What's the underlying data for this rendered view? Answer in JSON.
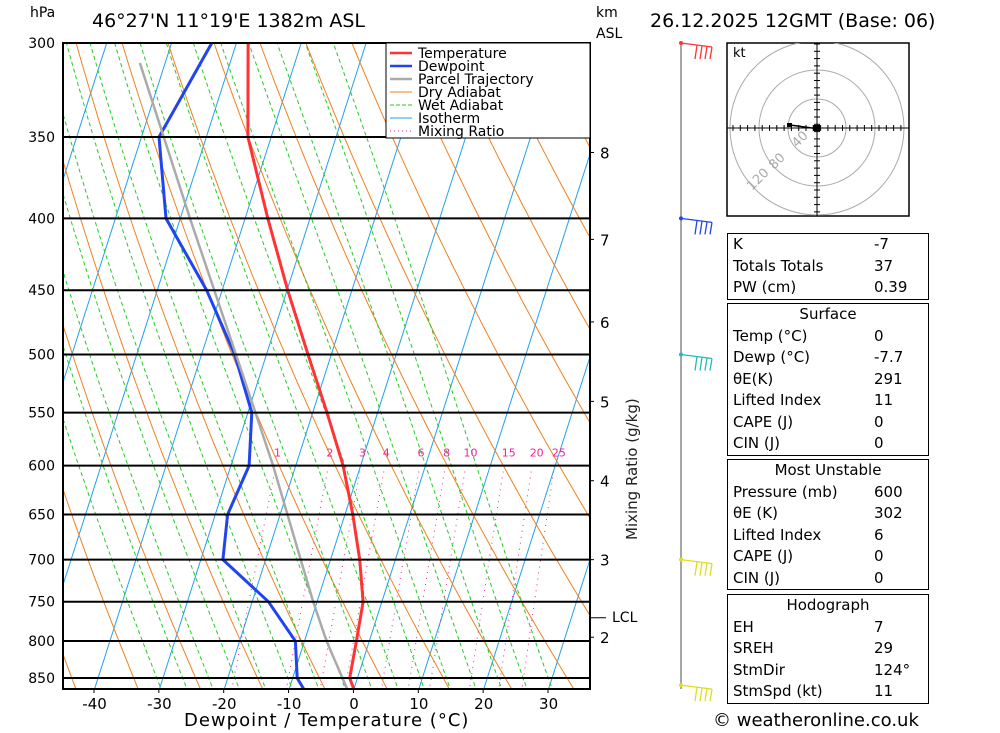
{
  "header": {
    "hpa": "hPa",
    "title": "46°27'N 11°19'E 1382m ASL",
    "km": "km",
    "asl": "ASL",
    "date": "26.12.2025 12GMT (Base: 06)"
  },
  "footer": "© weatheronline.co.uk",
  "hodograph": {
    "unit": "kt",
    "rings": [
      "40",
      "80",
      "120"
    ]
  },
  "indices": [
    {
      "label": "K",
      "value": "-7"
    },
    {
      "label": "Totals Totals",
      "value": "37"
    },
    {
      "label": "PW (cm)",
      "value": "0.39"
    }
  ],
  "surface": {
    "title": "Surface",
    "rows": [
      {
        "label": "Temp (°C)",
        "value": "0"
      },
      {
        "label": "Dewp (°C)",
        "value": "-7.7"
      },
      {
        "label": "θE(K)",
        "value": "291"
      },
      {
        "label": "Lifted Index",
        "value": "11"
      },
      {
        "label": "CAPE (J)",
        "value": "0"
      },
      {
        "label": "CIN (J)",
        "value": "0"
      }
    ]
  },
  "most_unstable": {
    "title": "Most Unstable",
    "rows": [
      {
        "label": "Pressure (mb)",
        "value": "600"
      },
      {
        "label": "θE (K)",
        "value": "302"
      },
      {
        "label": "Lifted Index",
        "value": "6"
      },
      {
        "label": "CAPE (J)",
        "value": "0"
      },
      {
        "label": "CIN (J)",
        "value": "0"
      }
    ]
  },
  "hodo_table": {
    "title": "Hodograph",
    "rows": [
      {
        "label": "EH",
        "value": "7"
      },
      {
        "label": "SREH",
        "value": "29"
      },
      {
        "label": "StmDir",
        "value": "124°"
      },
      {
        "label": "StmSpd (kt)",
        "value": "11"
      }
    ]
  },
  "chart_data": {
    "type": "line",
    "subtype": "skew-T log-p",
    "xlabel": "Dewpoint / Temperature (°C)",
    "ylabel": "hPa",
    "right_label": "Mixing Ratio (g/kg)",
    "xlim": [
      -44,
      36
    ],
    "ylim": [
      868,
      300
    ],
    "pressure_ticks": [
      300,
      350,
      400,
      450,
      500,
      550,
      600,
      650,
      700,
      750,
      800,
      850
    ],
    "temp_ticks": [
      -40,
      -30,
      -20,
      -10,
      0,
      10,
      20,
      30
    ],
    "km_ticks": [
      {
        "km": "8",
        "p": 359
      },
      {
        "km": "7",
        "p": 414
      },
      {
        "km": "6",
        "p": 474
      },
      {
        "km": "5",
        "p": 540
      },
      {
        "km": "4",
        "p": 615
      },
      {
        "km": "3",
        "p": 700
      },
      {
        "km": "2",
        "p": 795
      }
    ],
    "lcl": {
      "label": "LCL",
      "p": 770
    },
    "mixing_ratio_labels": [
      "1",
      "2",
      "3",
      "4",
      "6",
      "8",
      "10",
      "15",
      "20",
      "25"
    ],
    "legend": [
      {
        "name": "Temperature",
        "color": "#ff3333"
      },
      {
        "name": "Dewpoint",
        "color": "#2244ee"
      },
      {
        "name": "Parcel Trajectory",
        "color": "#aaaaaa"
      },
      {
        "name": "Dry Adiabat",
        "color": "#f08020"
      },
      {
        "name": "Wet Adiabat",
        "color": "#22cc22"
      },
      {
        "name": "Isotherm",
        "color": "#22a0f0"
      },
      {
        "name": "Mixing Ratio",
        "color": "#ee2299"
      }
    ],
    "series": [
      {
        "name": "Temperature",
        "p": [
          866,
          850,
          800,
          750,
          700,
          650,
          600,
          550,
          500,
          450,
          400,
          350,
          300
        ],
        "t": [
          0,
          -1.2,
          -2.0,
          -2.9,
          -5.5,
          -8.8,
          -12.7,
          -17.8,
          -23.6,
          -29.9,
          -36.5,
          -43.6,
          -48.2
        ]
      },
      {
        "name": "Dewpoint",
        "p": [
          866,
          850,
          800,
          750,
          700,
          650,
          600,
          550,
          500,
          450,
          400,
          350,
          300
        ],
        "t": [
          -7.7,
          -9.3,
          -11.4,
          -17.5,
          -26.6,
          -28.1,
          -27.2,
          -29.4,
          -34.9,
          -42.4,
          -52.2,
          -57.3,
          -53.8
        ]
      },
      {
        "name": "Parcel Trajectory",
        "p": [
          866,
          800,
          750,
          700,
          600,
          500,
          400,
          310
        ],
        "t": [
          -1,
          -6.6,
          -10.6,
          -14.6,
          -23.5,
          -34.7,
          -48.5,
          -63.9
        ]
      }
    ],
    "winds": [
      {
        "p": 300,
        "color": "#ff3333"
      },
      {
        "p": 400,
        "color": "#2244ee"
      },
      {
        "p": 500,
        "color": "#22bbbb"
      },
      {
        "p": 700,
        "color": "#dddd22"
      },
      {
        "p": 860,
        "color": "#dddd22"
      }
    ]
  }
}
